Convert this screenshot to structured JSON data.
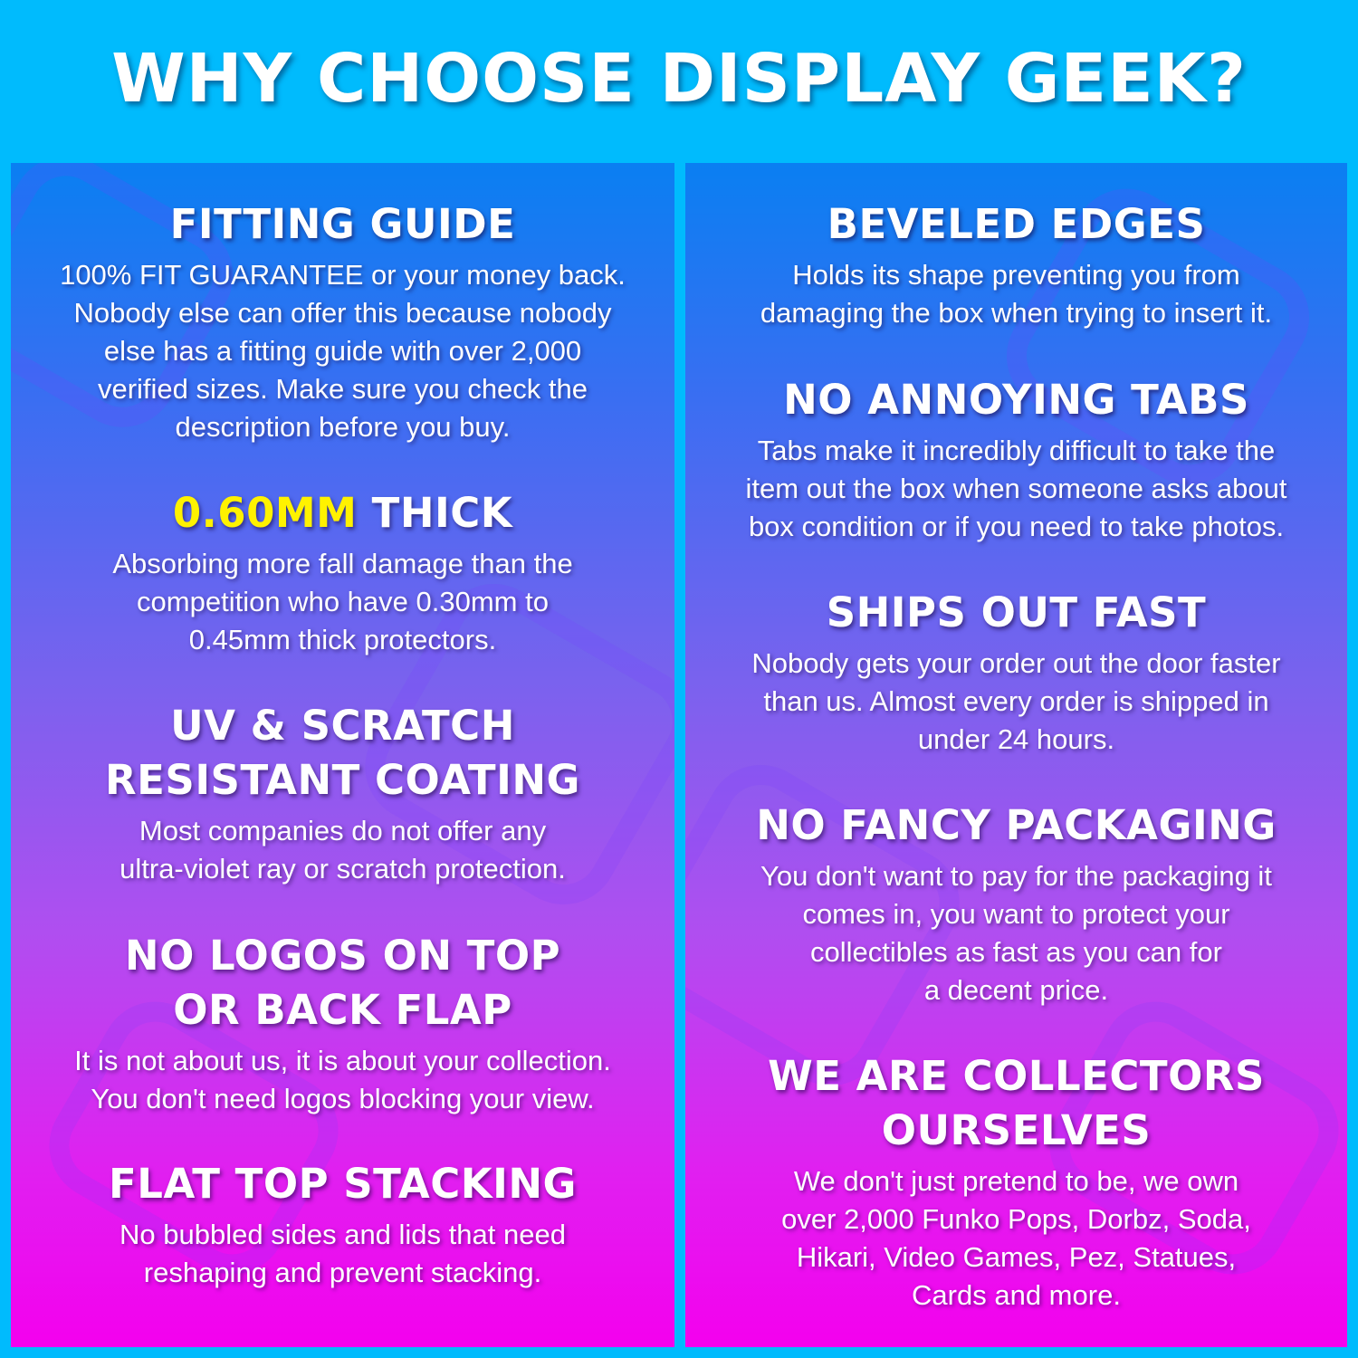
{
  "title": "WHY CHOOSE DISPLAY GEEK?",
  "colors": {
    "background": "#00bbfd",
    "panel_top": "#0a7ff2",
    "panel_bottom": "#f400ee",
    "highlight": "#fff200",
    "text": "#ffffff"
  },
  "left_column": [
    {
      "heading": [
        "FITTING GUIDE"
      ],
      "body": [
        "100% FIT GUARANTEE or your money back.",
        "Nobody else can offer this because nobody",
        "else has a fitting guide with over 2,000",
        "verified sizes. Make sure you check the",
        "description before you buy."
      ]
    },
    {
      "heading_highlight": "0.60MM",
      "heading": [
        "THICK"
      ],
      "body": [
        "Absorbing more fall damage than the",
        "competition who have 0.30mm to",
        "0.45mm thick protectors."
      ]
    },
    {
      "heading": [
        "UV & SCRATCH",
        "RESISTANT COATING"
      ],
      "body": [
        "Most companies do not offer any",
        "ultra-violet ray or scratch protection."
      ]
    },
    {
      "heading": [
        "NO LOGOS ON TOP",
        "OR BACK FLAP"
      ],
      "body": [
        "It is not about us, it is about your collection.",
        "You don't need logos blocking your view."
      ]
    },
    {
      "heading": [
        "FLAT TOP STACKING"
      ],
      "body": [
        "No bubbled sides and lids that need",
        "reshaping and prevent stacking."
      ]
    }
  ],
  "right_column": [
    {
      "heading": [
        "BEVELED EDGES"
      ],
      "body": [
        "Holds its shape preventing you from",
        "damaging the box when trying to insert it."
      ]
    },
    {
      "heading": [
        "NO ANNOYING TABS"
      ],
      "body": [
        "Tabs make it incredibly difficult to take the",
        "item out the box when someone asks about",
        "box condition or if you need to take photos."
      ]
    },
    {
      "heading": [
        "SHIPS OUT FAST"
      ],
      "body": [
        "Nobody gets your order out the door faster",
        "than us. Almost every order is shipped in",
        "under 24 hours."
      ]
    },
    {
      "heading": [
        "NO FANCY PACKAGING"
      ],
      "body": [
        "You don't want to pay for the packaging it",
        "comes in, you want to protect your",
        "collectibles as fast as you can for",
        "a decent price."
      ]
    },
    {
      "heading": [
        "WE ARE COLLECTORS",
        "OURSELVES"
      ],
      "body": [
        "We don't just pretend to be, we own",
        "over 2,000 Funko Pops, Dorbz, Soda,",
        "Hikari, Video Games, Pez, Statues,",
        "Cards and more."
      ]
    }
  ]
}
